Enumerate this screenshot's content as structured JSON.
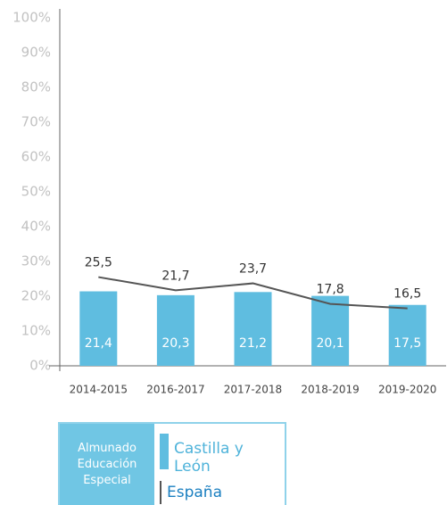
{
  "chart_data": {
    "type": "bar",
    "categories": [
      "2014-2015",
      "2016-2017",
      "2017-2018",
      "2018-2019",
      "2019-2020"
    ],
    "series": [
      {
        "name": "Castilla y León",
        "type": "bar",
        "color": "#5fbde0",
        "values": [
          21.4,
          20.3,
          21.2,
          20.1,
          17.5
        ],
        "value_labels": [
          "21,4",
          "20,3",
          "21,2",
          "20,1",
          "17,5"
        ]
      },
      {
        "name": "España",
        "type": "line",
        "color": "#555555",
        "values": [
          25.5,
          21.7,
          23.7,
          17.8,
          16.5
        ],
        "value_labels": [
          "25,5",
          "21,7",
          "23,7",
          "17,8",
          "16,5"
        ]
      }
    ],
    "ylim": [
      0,
      100
    ],
    "yticks": [
      {
        "value": 0,
        "label": "0%"
      },
      {
        "value": 10,
        "label": "10%"
      },
      {
        "value": 20,
        "label": "20%"
      },
      {
        "value": 30,
        "label": "30%"
      },
      {
        "value": 40,
        "label": "40%"
      },
      {
        "value": 50,
        "label": "50%"
      },
      {
        "value": 60,
        "label": "60%"
      },
      {
        "value": 70,
        "label": "70%"
      },
      {
        "value": 80,
        "label": "80%"
      },
      {
        "value": 90,
        "label": "90%"
      },
      {
        "value": 100,
        "label": "100%"
      }
    ],
    "legend_title": "Almunado Educación Especial",
    "legend": "bottom-left"
  }
}
